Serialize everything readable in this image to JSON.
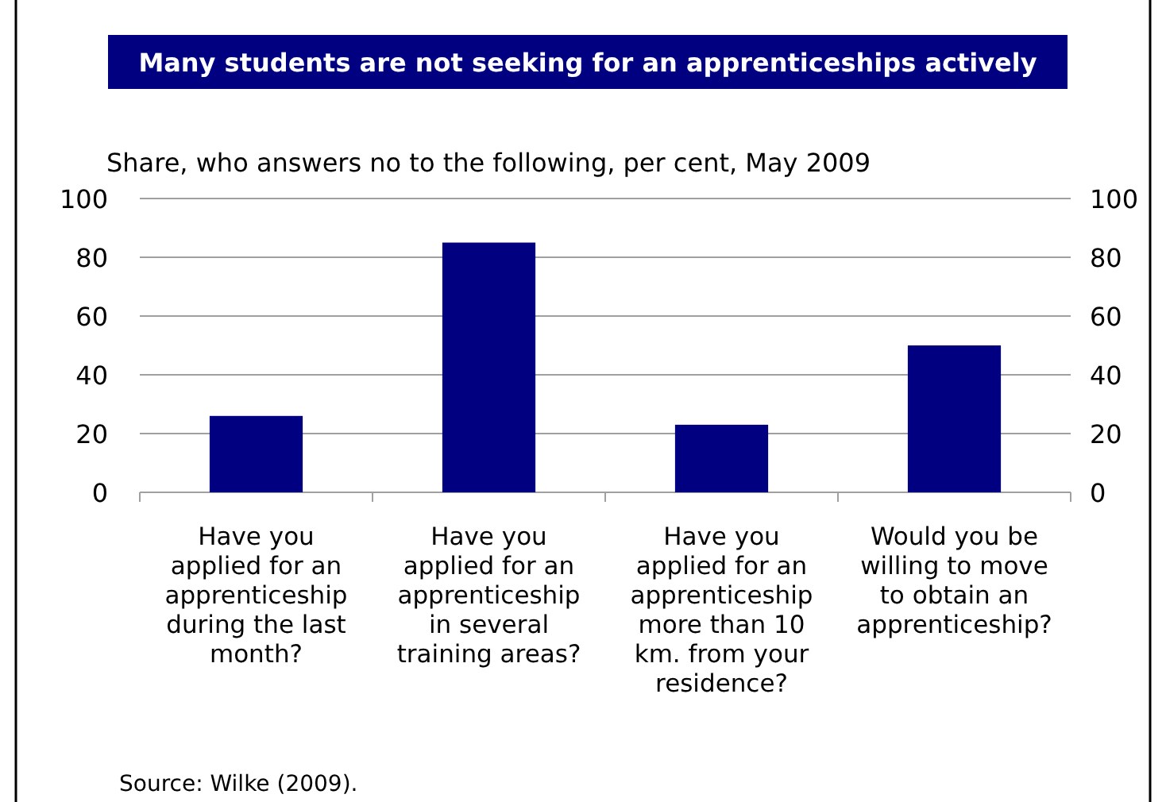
{
  "chart_data": {
    "type": "bar",
    "title": "Many students are not seeking for an apprenticeships actively",
    "subtitle": "Share, who answers no to the following, per cent, May 2009",
    "categories": [
      "Have you applied for an apprenticeship during the last month?",
      "Have you applied for an apprenticeship in several training areas?",
      "Have you applied for an apprenticeship more than 10 km. from your residence?",
      "Would you be willing to move to obtain an apprenticeship?"
    ],
    "values": [
      26,
      85,
      23,
      50
    ],
    "color": "#000080",
    "ylim": [
      0,
      100
    ],
    "yticks": [
      0,
      20,
      40,
      60,
      80,
      100
    ],
    "y2lim": [
      0,
      100
    ],
    "y2ticks": [
      0,
      20,
      40,
      60,
      80,
      100
    ],
    "grid": "y",
    "annotations": [
      "Source: Wilke (2009)."
    ]
  }
}
